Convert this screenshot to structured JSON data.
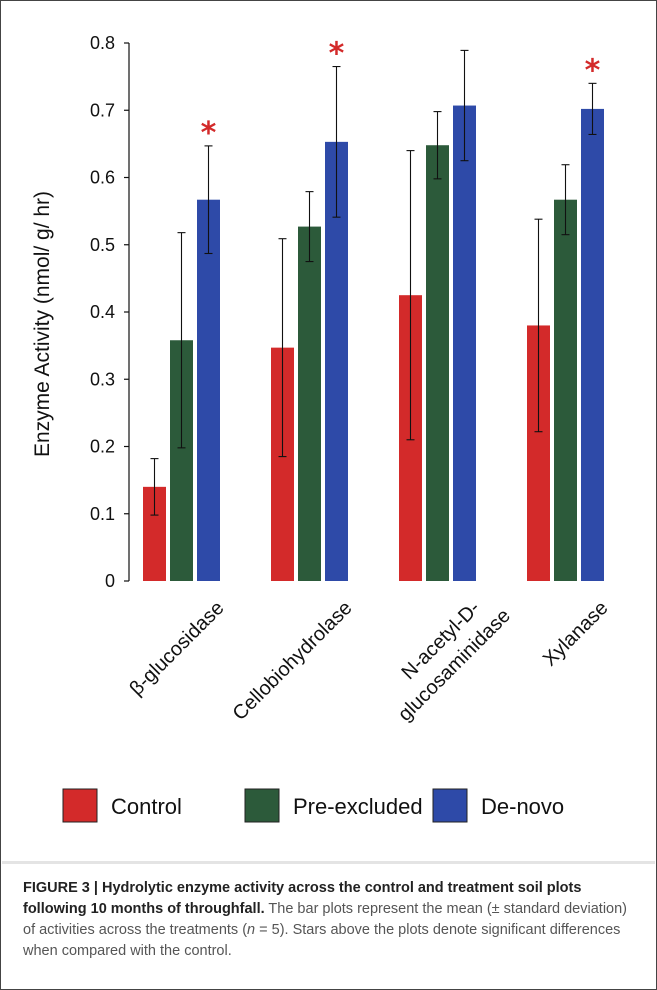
{
  "chart_data": {
    "type": "bar",
    "categories": [
      "β-glucosidase",
      "Cellobiohydrolase",
      "N-acetyl-D-glucosaminidase",
      "Xylanase"
    ],
    "category_label_lines": [
      [
        "β-glucosidase"
      ],
      [
        "Cellobiohydrolase"
      ],
      [
        "N-acetyl-D-",
        "glucosaminidase"
      ],
      [
        "Xylanase"
      ]
    ],
    "series": [
      {
        "name": "Control",
        "color": "#d32a2a",
        "values": [
          0.14,
          0.347,
          0.425,
          0.38
        ],
        "errors": [
          0.042,
          0.162,
          0.215,
          0.158
        ]
      },
      {
        "name": "Pre-excluded",
        "color": "#2c5a3a",
        "values": [
          0.358,
          0.527,
          0.648,
          0.567
        ],
        "errors": [
          0.16,
          0.052,
          0.05,
          0.052
        ]
      },
      {
        "name": "De-novo",
        "color": "#2e4aa8",
        "values": [
          0.567,
          0.653,
          0.707,
          0.702
        ],
        "errors": [
          0.08,
          0.112,
          0.082,
          0.038
        ]
      }
    ],
    "significance_markers": [
      {
        "category_index": 0,
        "series_index": 2,
        "symbol": "*"
      },
      {
        "category_index": 1,
        "series_index": 2,
        "symbol": "*"
      },
      {
        "category_index": 3,
        "series_index": 2,
        "symbol": "*"
      }
    ],
    "ylabel": "Enzyme Activity (nmol/ g/ hr)",
    "ylim": [
      0,
      0.8
    ],
    "yticks": [
      "0",
      "0.1",
      "0.2",
      "0.3",
      "0.4",
      "0.5",
      "0.6",
      "0.7",
      "0.8"
    ],
    "grid": false,
    "legend_position": "bottom",
    "star_color": "#d32a2a"
  },
  "caption": {
    "label": "FIGURE 3 | Hydrolytic enzyme activity across the control and treatment soil plots following 10 months of throughfall.",
    "text_1": " The bar plots represent the mean (± standard deviation) of activities across the treatments (",
    "n_symbol": "n",
    "text_2": " = 5). Stars above the plots denote significant differences when compared with the control."
  }
}
